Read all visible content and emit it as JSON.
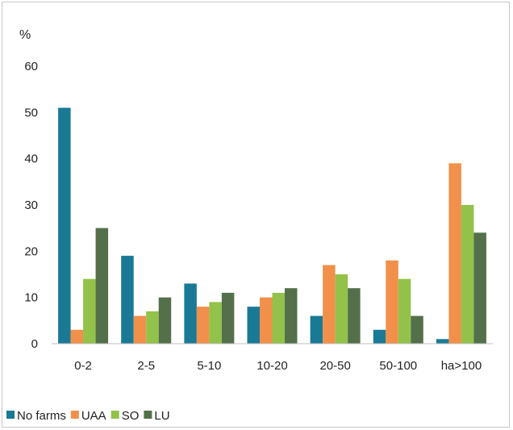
{
  "chart_data": {
    "type": "bar",
    "ylabel": "%",
    "ylim": [
      0,
      60
    ],
    "yticks": [
      0,
      10,
      20,
      30,
      40,
      50,
      60
    ],
    "grid": false,
    "legend_position": "bottom-left",
    "categories": [
      "0-2",
      "2-5",
      "5-10",
      "10-20",
      "20-50",
      "50-100",
      "ha>100"
    ],
    "series": [
      {
        "name": "No farms",
        "color": "#1a7a96",
        "values": [
          51,
          19,
          13,
          8,
          6,
          3,
          1
        ]
      },
      {
        "name": "UAA",
        "color": "#f0904a",
        "values": [
          3,
          6,
          8,
          10,
          17,
          18,
          39
        ]
      },
      {
        "name": "SO",
        "color": "#93c24a",
        "values": [
          14,
          7,
          9,
          11,
          15,
          14,
          30
        ]
      },
      {
        "name": "LU",
        "color": "#54704a",
        "values": [
          25,
          10,
          11,
          12,
          12,
          6,
          24
        ]
      }
    ]
  }
}
